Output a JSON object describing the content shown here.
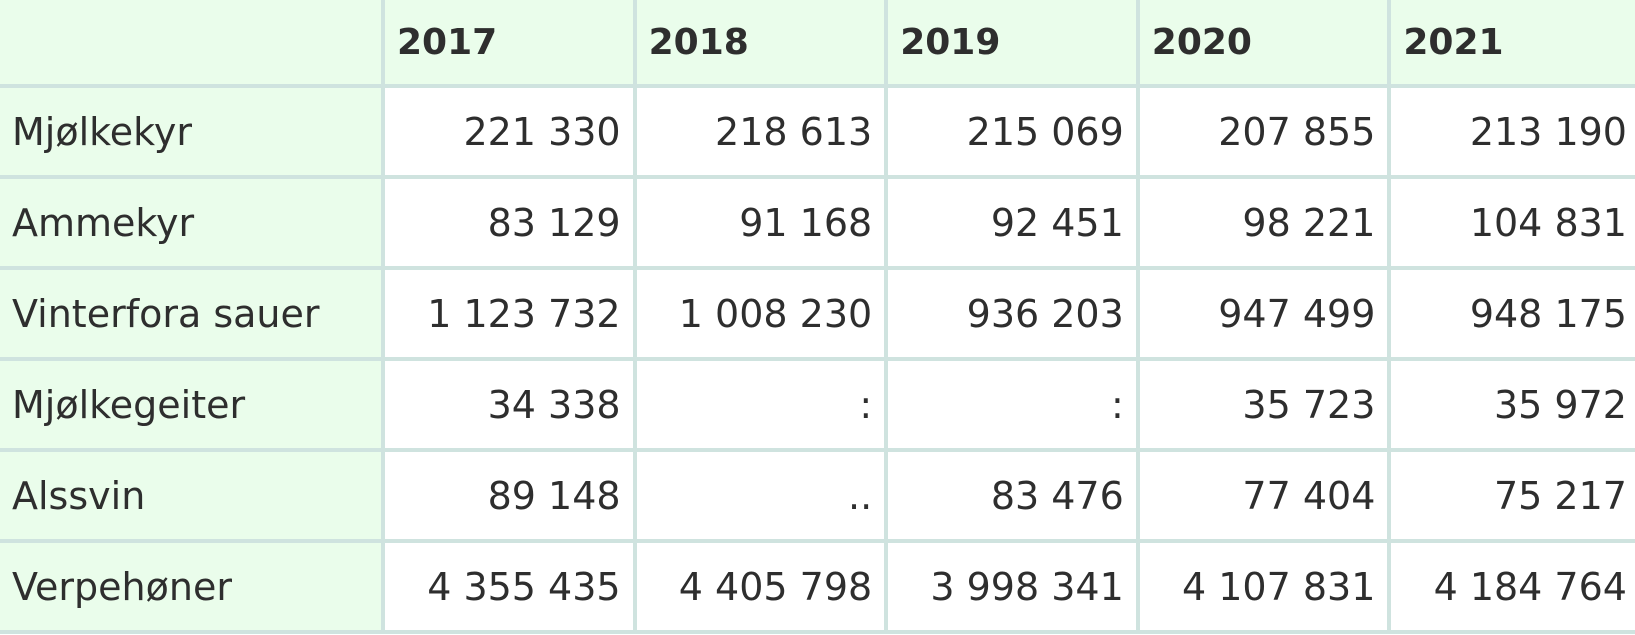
{
  "table": {
    "columns": [
      "2017",
      "2018",
      "2019",
      "2020",
      "2021"
    ],
    "rows": [
      {
        "label": "Mjølkekyr",
        "values": [
          "221 330",
          "218 613",
          "215 069",
          "207 855",
          "213 190"
        ]
      },
      {
        "label": "Ammekyr",
        "values": [
          "83 129",
          "91 168",
          "92 451",
          "98 221",
          "104 831"
        ]
      },
      {
        "label": "Vinterfora sauer",
        "values": [
          "1 123 732",
          "1 008 230",
          "936 203",
          "947 499",
          "948 175"
        ]
      },
      {
        "label": "Mjølkegeiter",
        "values": [
          "34 338",
          ":",
          ":",
          "35 723",
          "35 972"
        ]
      },
      {
        "label": "Alssvin",
        "values": [
          "89 148",
          "..",
          "83 476",
          "77 404",
          "75 217"
        ]
      },
      {
        "label": "Verpehøner",
        "values": [
          "4 355 435",
          "4 405 798",
          "3 998 341",
          "4 107 831",
          "4 184 764"
        ]
      }
    ]
  }
}
